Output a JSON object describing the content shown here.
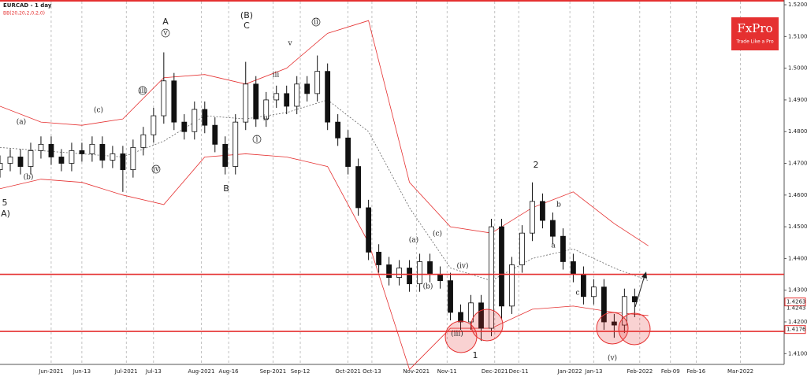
{
  "chart_data": {
    "type": "candlestick",
    "title": "EURCAD - 1 day",
    "indicator": "BB(20,20,2,0,2,0)",
    "logo": {
      "name": "FxPro",
      "tagline": "Trade Like a Pro"
    },
    "x": [
      -15,
      -12,
      -9,
      -6,
      -3,
      0,
      3,
      6,
      9,
      12,
      15,
      18,
      21,
      24,
      27,
      30,
      33,
      36,
      39,
      42,
      45,
      48,
      51,
      54,
      57,
      60,
      63,
      66,
      69,
      72,
      75,
      78,
      81,
      84,
      87,
      90,
      93,
      96,
      99,
      102,
      105,
      108,
      111,
      114,
      117,
      120,
      123,
      126,
      129,
      132,
      135,
      138,
      141,
      144,
      147,
      150,
      153,
      156,
      159,
      162,
      165,
      168,
      171
    ],
    "open": [
      1.468,
      1.47,
      1.472,
      1.469,
      1.474,
      1.476,
      1.472,
      1.47,
      1.474,
      1.473,
      1.476,
      1.471,
      1.473,
      1.468,
      1.475,
      1.479,
      1.485,
      1.496,
      1.483,
      1.48,
      1.487,
      1.482,
      1.476,
      1.469,
      1.483,
      1.495,
      1.484,
      1.49,
      1.492,
      1.488,
      1.495,
      1.492,
      1.499,
      1.483,
      1.478,
      1.469,
      1.456,
      1.442,
      1.438,
      1.434,
      1.437,
      1.432,
      1.439,
      1.435,
      1.433,
      1.423,
      1.42,
      1.426,
      1.418,
      1.45,
      1.425,
      1.438,
      1.448,
      1.458,
      1.452,
      1.447,
      1.439,
      1.435,
      1.428,
      1.431,
      1.42,
      1.419,
      1.428
    ],
    "high": [
      1.4725,
      1.4745,
      1.4745,
      1.4765,
      1.4785,
      1.4785,
      1.4745,
      1.4765,
      1.4765,
      1.4785,
      1.4785,
      1.4755,
      1.4755,
      1.4775,
      1.4815,
      1.4875,
      1.505,
      1.4985,
      1.4855,
      1.4895,
      1.4895,
      1.4845,
      1.4785,
      1.4855,
      1.502,
      1.4975,
      1.4925,
      1.4945,
      1.4945,
      1.4975,
      1.4975,
      1.504,
      1.5015,
      1.4855,
      1.4805,
      1.4715,
      1.4585,
      1.4445,
      1.4405,
      1.4395,
      1.4395,
      1.4415,
      1.4415,
      1.4375,
      1.4355,
      1.4255,
      1.4285,
      1.4285,
      1.4525,
      1.4525,
      1.4405,
      1.4505,
      1.464,
      1.4605,
      1.4545,
      1.4495,
      1.4415,
      1.4375,
      1.4335,
      1.4335,
      1.4225,
      1.4305,
      1.4305
    ],
    "low": [
      1.4655,
      1.4675,
      1.4665,
      1.4665,
      1.4715,
      1.4695,
      1.4675,
      1.4675,
      1.4705,
      1.4705,
      1.4685,
      1.4685,
      1.461,
      1.4655,
      1.4725,
      1.4765,
      1.4825,
      1.4805,
      1.4775,
      1.4775,
      1.4795,
      1.4735,
      1.4665,
      1.4665,
      1.4805,
      1.4815,
      1.4815,
      1.4875,
      1.4855,
      1.4855,
      1.4895,
      1.4895,
      1.4805,
      1.4755,
      1.4665,
      1.4535,
      1.4395,
      1.4355,
      1.4315,
      1.4315,
      1.4295,
      1.4295,
      1.4325,
      1.4305,
      1.4205,
      1.4175,
      1.4175,
      1.414,
      1.4155,
      1.421,
      1.4225,
      1.4355,
      1.4455,
      1.4495,
      1.4445,
      1.4365,
      1.4325,
      1.4255,
      1.4255,
      1.4175,
      1.415,
      1.4165,
      1.4215
    ],
    "close": [
      1.47,
      1.472,
      1.469,
      1.474,
      1.476,
      1.472,
      1.47,
      1.474,
      1.473,
      1.476,
      1.471,
      1.473,
      1.468,
      1.475,
      1.479,
      1.485,
      1.496,
      1.483,
      1.48,
      1.487,
      1.482,
      1.476,
      1.469,
      1.483,
      1.495,
      1.484,
      1.49,
      1.492,
      1.488,
      1.495,
      1.492,
      1.499,
      1.483,
      1.478,
      1.469,
      1.456,
      1.442,
      1.438,
      1.434,
      1.437,
      1.432,
      1.439,
      1.435,
      1.433,
      1.423,
      1.42,
      1.426,
      1.418,
      1.45,
      1.425,
      1.438,
      1.448,
      1.458,
      1.452,
      1.447,
      1.439,
      1.435,
      1.428,
      1.431,
      1.42,
      1.419,
      1.428,
      1.4263
    ],
    "band_x": [
      -15,
      -3,
      9,
      21,
      33,
      45,
      57,
      69,
      81,
      93,
      105,
      117,
      129,
      141,
      153,
      165,
      175
    ],
    "bands": [
      {
        "name": "upper",
        "color": "#e53030",
        "values": [
          1.488,
          1.483,
          1.482,
          1.484,
          1.497,
          1.498,
          1.495,
          1.5,
          1.511,
          1.515,
          1.464,
          1.45,
          1.448,
          1.456,
          1.461,
          1.451,
          1.444
        ]
      },
      {
        "name": "middle",
        "color": "#666666",
        "values": [
          1.475,
          1.474,
          1.473,
          1.472,
          1.477,
          1.485,
          1.484,
          1.486,
          1.49,
          1.48,
          1.456,
          1.437,
          1.433,
          1.44,
          1.443,
          1.437,
          1.433
        ]
      },
      {
        "name": "lower",
        "color": "#e53030",
        "values": [
          1.462,
          1.465,
          1.464,
          1.46,
          1.457,
          1.472,
          1.473,
          1.472,
          1.469,
          1.445,
          1.405,
          1.418,
          1.418,
          1.424,
          1.425,
          1.423,
          1.422
        ]
      }
    ],
    "levels": [
      1.435,
      1.417
    ],
    "price_markers": [
      {
        "value": 1.4263,
        "label": "1.4263",
        "boxed": true
      },
      {
        "value": 1.4243,
        "label": "1.4243",
        "boxed": false
      },
      {
        "value": 1.4176,
        "label": "1.4176",
        "boxed": true
      }
    ],
    "xlim": [
      -15,
      214.8
    ],
    "xticks": [
      {
        "value": 0,
        "label": "Jun-2021"
      },
      {
        "value": 9,
        "label": "Jun-13"
      },
      {
        "value": 22,
        "label": "Jul-2021"
      },
      {
        "value": 30,
        "label": "Jul-13"
      },
      {
        "value": 44,
        "label": "Aug-2021"
      },
      {
        "value": 52,
        "label": "Aug-16"
      },
      {
        "value": 65,
        "label": "Sep-2021"
      },
      {
        "value": 73,
        "label": "Sep-12"
      },
      {
        "value": 87,
        "label": "Oct-2021"
      },
      {
        "value": 94,
        "label": "Oct-13"
      },
      {
        "value": 107,
        "label": "Nov-2021"
      },
      {
        "value": 116,
        "label": "Nov-11"
      },
      {
        "value": 130,
        "label": "Dec-2021"
      },
      {
        "value": 137,
        "label": "Dec-11"
      },
      {
        "value": 152,
        "label": "Jan-2022"
      },
      {
        "value": 159,
        "label": "Jan-13"
      },
      {
        "value": 172.5,
        "label": "Feb-2022"
      },
      {
        "value": 181.5,
        "label": "Feb-09"
      },
      {
        "value": 189,
        "label": "Feb-16"
      },
      {
        "value": 202,
        "label": "Mar-2022"
      }
    ],
    "ylim": [
      1.4066,
      1.5215
    ],
    "yticks": [
      {
        "value": 1.52,
        "label": "1.5200"
      },
      {
        "value": 1.51,
        "label": "1.5100"
      },
      {
        "value": 1.5,
        "label": "1.5000"
      },
      {
        "value": 1.49,
        "label": "1.4900"
      },
      {
        "value": 1.48,
        "label": "1.4800"
      },
      {
        "value": 1.47,
        "label": "1.4700"
      },
      {
        "value": 1.46,
        "label": "1.4600"
      },
      {
        "value": 1.45,
        "label": "1.4500"
      },
      {
        "value": 1.44,
        "label": "1.4400"
      },
      {
        "value": 1.43,
        "label": "1.4300"
      },
      {
        "value": 1.42,
        "label": "1.4200"
      },
      {
        "value": 1.41,
        "label": "1.4100"
      }
    ],
    "annotations": [
      "A",
      "(B)",
      "C",
      "B",
      "2",
      "1",
      "5",
      "A)",
      "v",
      "iii",
      "iv",
      "(a)",
      "(b)",
      "(c)",
      "i",
      "ii",
      "iii",
      "iv",
      "v",
      "(iii)",
      "(iv)",
      "(v)",
      "a",
      "b",
      "c",
      "(a)",
      "(b)",
      "(c)"
    ]
  }
}
